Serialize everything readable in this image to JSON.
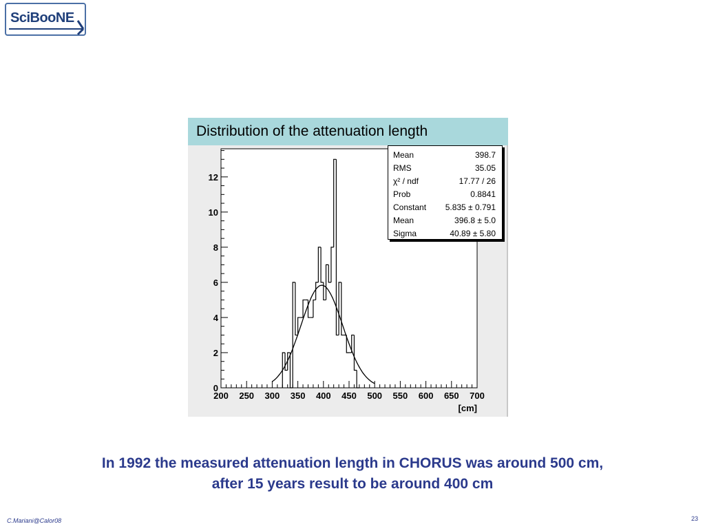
{
  "logo": {
    "text": "SciBooNE"
  },
  "chart_data": {
    "type": "bar",
    "title": "Distribution of the attenuation length",
    "xlabel": "[cm]",
    "ylabel": "",
    "xlim": [
      200,
      700
    ],
    "ylim": [
      0,
      13.6
    ],
    "x_ticks": [
      200,
      250,
      300,
      350,
      400,
      450,
      500,
      550,
      600,
      650,
      700
    ],
    "y_ticks": [
      0,
      2,
      4,
      6,
      8,
      10,
      12
    ],
    "bin_width": 5,
    "bins": [
      {
        "x0": 320,
        "value": 2
      },
      {
        "x0": 325,
        "value": 1
      },
      {
        "x0": 330,
        "value": 2
      },
      {
        "x0": 335,
        "value": 0
      },
      {
        "x0": 340,
        "value": 6
      },
      {
        "x0": 345,
        "value": 3
      },
      {
        "x0": 350,
        "value": 4
      },
      {
        "x0": 355,
        "value": 4
      },
      {
        "x0": 360,
        "value": 5
      },
      {
        "x0": 365,
        "value": 5
      },
      {
        "x0": 370,
        "value": 4
      },
      {
        "x0": 375,
        "value": 4
      },
      {
        "x0": 380,
        "value": 5
      },
      {
        "x0": 385,
        "value": 6
      },
      {
        "x0": 390,
        "value": 8
      },
      {
        "x0": 395,
        "value": 6
      },
      {
        "x0": 400,
        "value": 5
      },
      {
        "x0": 405,
        "value": 7
      },
      {
        "x0": 410,
        "value": 6
      },
      {
        "x0": 415,
        "value": 8
      },
      {
        "x0": 420,
        "value": 13
      },
      {
        "x0": 425,
        "value": 3
      },
      {
        "x0": 430,
        "value": 6
      },
      {
        "x0": 435,
        "value": 3
      },
      {
        "x0": 440,
        "value": 3
      },
      {
        "x0": 445,
        "value": 2
      },
      {
        "x0": 450,
        "value": 2
      },
      {
        "x0": 455,
        "value": 3
      },
      {
        "x0": 460,
        "value": 1
      },
      {
        "x0": 465,
        "value": 0
      }
    ],
    "fit": {
      "type": "gaussian",
      "constant": 5.835,
      "mean": 396.8,
      "sigma": 40.89
    },
    "stats": [
      {
        "label": "Mean",
        "value": "398.7"
      },
      {
        "label": "RMS",
        "value": "35.05"
      },
      {
        "label": "χ² / ndf",
        "value": "17.77 / 26"
      },
      {
        "label": "Prob",
        "value": "0.8841"
      },
      {
        "label": "Constant",
        "value": "5.835 ± 0.791"
      },
      {
        "label": "Mean",
        "value": "396.8 ± 5.0"
      },
      {
        "label": "Sigma",
        "value": "40.89 ± 5.80"
      }
    ],
    "grid": false
  },
  "caption": {
    "line1": "In 1992 the measured attenuation length in CHORUS was around 500 cm,",
    "line2": "after 15 years result to be around 400 cm"
  },
  "footer": {
    "author": "C.Mariani@Calor08",
    "page_number": "23"
  }
}
